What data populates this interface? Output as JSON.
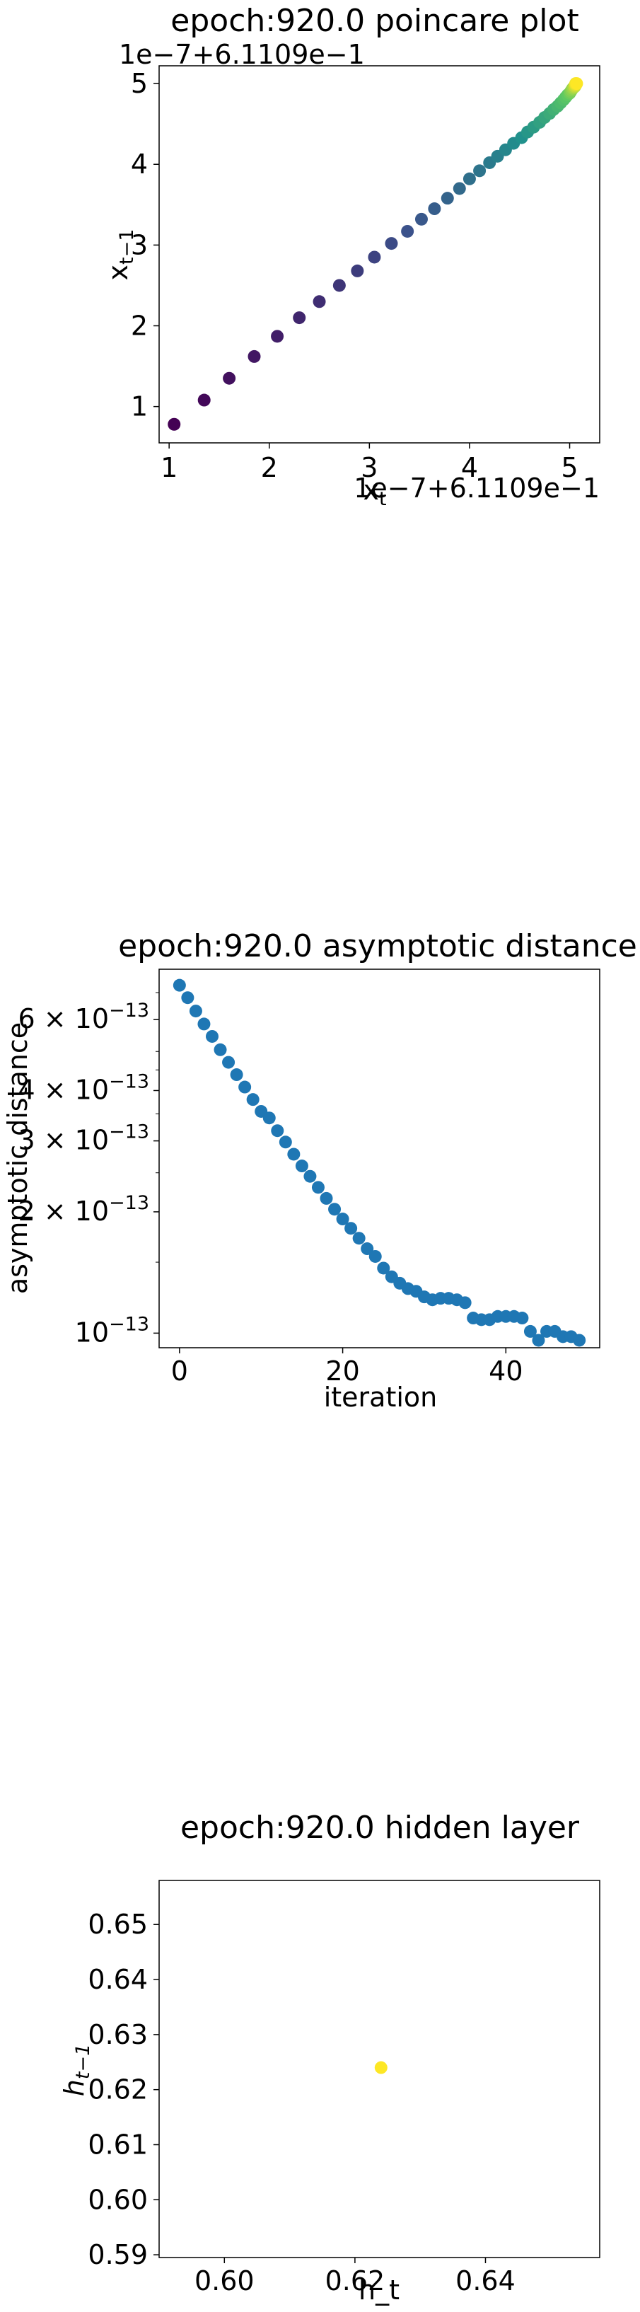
{
  "chart_data": [
    {
      "type": "scatter",
      "title": "epoch:920.0 poincare plot",
      "xlabel": "x_t",
      "ylabel": "x_{t-1}",
      "x_offset_text": "1e−7+6.1109e−1",
      "y_offset_text": "1e−7+6.1109e−1",
      "xlim": [
        0.9,
        5.3
      ],
      "ylim": [
        0.55,
        5.22
      ],
      "xticks": [
        1,
        2,
        3,
        4,
        5
      ],
      "yticks": [
        1,
        2,
        3,
        4,
        5
      ],
      "colormap": "viridis",
      "points": [
        [
          1.05,
          0.78
        ],
        [
          1.35,
          1.08
        ],
        [
          1.6,
          1.35
        ],
        [
          1.85,
          1.62
        ],
        [
          2.08,
          1.87
        ],
        [
          2.3,
          2.1
        ],
        [
          2.5,
          2.3
        ],
        [
          2.7,
          2.5
        ],
        [
          2.88,
          2.68
        ],
        [
          3.05,
          2.85
        ],
        [
          3.22,
          3.02
        ],
        [
          3.38,
          3.17
        ],
        [
          3.52,
          3.32
        ],
        [
          3.65,
          3.45
        ],
        [
          3.78,
          3.58
        ],
        [
          3.9,
          3.7
        ],
        [
          4.0,
          3.82
        ],
        [
          4.1,
          3.92
        ],
        [
          4.2,
          4.02
        ],
        [
          4.28,
          4.1
        ],
        [
          4.36,
          4.18
        ],
        [
          4.44,
          4.26
        ],
        [
          4.52,
          4.33
        ],
        [
          4.58,
          4.4
        ],
        [
          4.64,
          4.46
        ],
        [
          4.7,
          4.52
        ],
        [
          4.75,
          4.58
        ],
        [
          4.8,
          4.63
        ],
        [
          4.84,
          4.68
        ],
        [
          4.88,
          4.72
        ],
        [
          4.91,
          4.76
        ],
        [
          4.94,
          4.8
        ],
        [
          4.96,
          4.83
        ],
        [
          4.98,
          4.86
        ],
        [
          5.0,
          4.88
        ],
        [
          5.01,
          4.9
        ],
        [
          5.02,
          4.92
        ],
        [
          5.03,
          4.94
        ],
        [
          5.04,
          4.95
        ],
        [
          5.05,
          4.96
        ],
        [
          5.05,
          4.97
        ],
        [
          5.06,
          4.98
        ],
        [
          5.06,
          4.99
        ],
        [
          5.06,
          5.0
        ],
        [
          5.07,
          5.0
        ]
      ]
    },
    {
      "type": "scatter",
      "title": "epoch:920.0 asymptotic distance",
      "xlabel": "iteration",
      "ylabel": "asymptotic distance",
      "yscale": "log",
      "xlim": [
        -2.5,
        51.5
      ],
      "ylim": [
        9.2e-14,
        8e-13
      ],
      "xticks": [
        0,
        20,
        40
      ],
      "yticks": [
        {
          "value": 6e-13,
          "mantissa": "6",
          "exp": "−13"
        },
        {
          "value": 4e-13,
          "mantissa": "4",
          "exp": "−13"
        },
        {
          "value": 3e-13,
          "mantissa": "3",
          "exp": "−13"
        },
        {
          "value": 2e-13,
          "mantissa": "2",
          "exp": "−13"
        },
        {
          "value": 1e-13,
          "mantissa": "",
          "exp": "−13"
        }
      ],
      "color": "#1f77b4",
      "x": [
        0,
        1,
        2,
        3,
        4,
        5,
        6,
        7,
        8,
        9,
        10,
        11,
        12,
        13,
        14,
        15,
        16,
        17,
        18,
        19,
        20,
        21,
        22,
        23,
        24,
        25,
        26,
        27,
        28,
        29,
        30,
        31,
        32,
        33,
        34,
        35,
        36,
        37,
        38,
        39,
        40,
        41,
        42,
        43,
        44,
        45,
        46,
        47,
        48,
        49
      ],
      "y": [
        7.3e-13,
        6.8e-13,
        6.3e-13,
        5.85e-13,
        5.45e-13,
        5.05e-13,
        4.7e-13,
        4.38e-13,
        4.08e-13,
        3.8e-13,
        3.55e-13,
        3.42e-13,
        3.18e-13,
        2.98e-13,
        2.78e-13,
        2.6e-13,
        2.45e-13,
        2.3e-13,
        2.16e-13,
        2.03e-13,
        1.92e-13,
        1.82e-13,
        1.72e-13,
        1.62e-13,
        1.55e-13,
        1.45e-13,
        1.38e-13,
        1.33e-13,
        1.29e-13,
        1.27e-13,
        1.23e-13,
        1.21e-13,
        1.22e-13,
        1.22e-13,
        1.21e-13,
        1.19e-13,
        1.09e-13,
        1.08e-13,
        1.08e-13,
        1.1e-13,
        1.1e-13,
        1.1e-13,
        1.09e-13,
        1.01e-13,
        9.6e-14,
        1.01e-13,
        1.01e-13,
        9.8e-14,
        9.8e-14,
        9.6e-14
      ]
    },
    {
      "type": "scatter",
      "title": "epoch:920.0 hidden layer",
      "xlabel": "h_t",
      "ylabel": "h_{t-1}",
      "xlim": [
        0.59,
        0.6575
      ],
      "ylim": [
        0.5895,
        0.658
      ],
      "xticks": [
        "0.60",
        "0.62",
        "0.64"
      ],
      "yticks": [
        "0.59",
        "0.60",
        "0.61",
        "0.62",
        "0.63",
        "0.64",
        "0.65"
      ],
      "points": [
        [
          0.624,
          0.624
        ]
      ],
      "color": "#fde725"
    }
  ]
}
